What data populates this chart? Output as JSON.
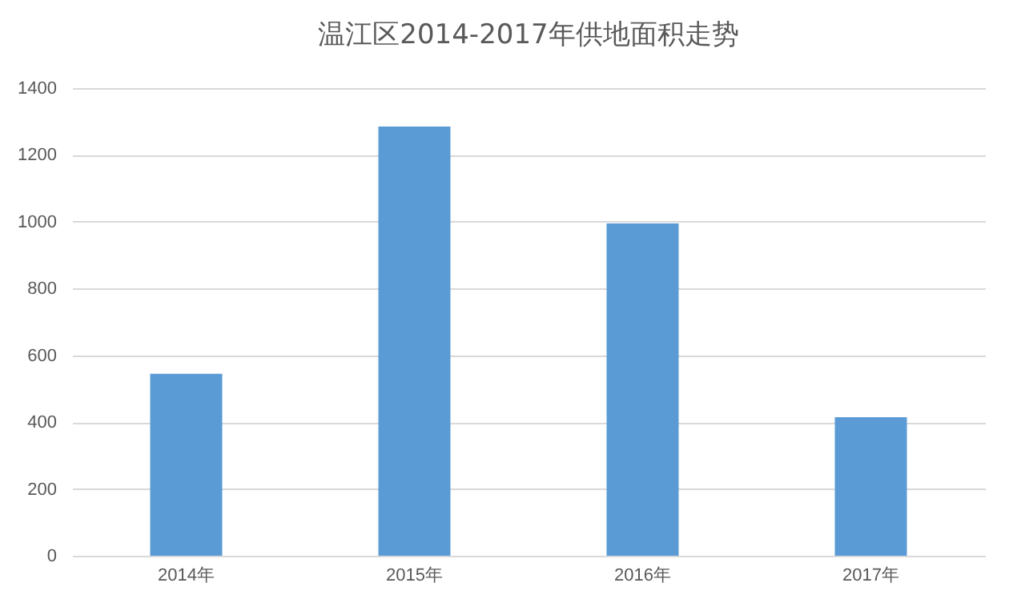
{
  "chart_data": {
    "type": "bar",
    "title": "温江区2014-2017年供地面积走势",
    "categories": [
      "2014年",
      "2015年",
      "2016年",
      "2017年"
    ],
    "values": [
      545,
      1285,
      995,
      415
    ],
    "color": "#5b9bd5",
    "ylim": [
      0,
      1400
    ],
    "yticks": [
      0,
      200,
      400,
      600,
      800,
      1000,
      1200,
      1400
    ],
    "grid": "y"
  }
}
